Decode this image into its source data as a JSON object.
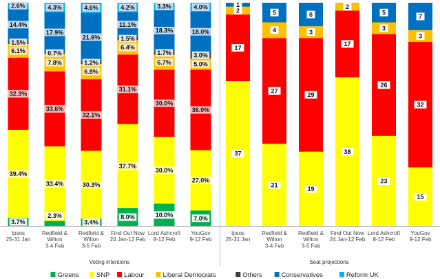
{
  "chart_data": [
    {
      "type": "bar",
      "stacked": true,
      "normalized": true,
      "title": "Voting intentions",
      "categories": [
        [
          "Ipsos",
          "25-31 Jan"
        ],
        [
          "Redfield &",
          "Wilton",
          "3-4 Feb"
        ],
        [
          "Redfield &",
          "Wilton",
          "3-5 Feb"
        ],
        [
          "Find Out Now",
          "24 Jan-12 Feb"
        ],
        [
          "Lord Ashcroft",
          "8-12 Feb"
        ],
        [
          "YouGov",
          "9-12 Feb"
        ]
      ],
      "ylim": [
        0,
        100
      ],
      "series": [
        {
          "name": "Greens",
          "values": [
            3.7,
            2.3,
            3.4,
            8.0,
            10.0,
            7.0
          ],
          "labels": [
            "3.7%",
            "2.3%",
            "3.4%",
            "8.0%",
            "10.0%",
            "7.0%"
          ]
        },
        {
          "name": "SNP",
          "values": [
            39.4,
            33.4,
            30.3,
            37.7,
            30.0,
            27.0
          ],
          "labels": [
            "39.4%",
            "33.4%",
            "30.3%",
            "37.7%",
            "30.0%",
            "27.0%"
          ]
        },
        {
          "name": "Labour",
          "values": [
            32.3,
            33.6,
            32.1,
            31.1,
            30.0,
            36.0
          ],
          "labels": [
            "32.3%",
            "33.6%",
            "32.1%",
            "31.1%",
            "30.0%",
            "36.0%"
          ]
        },
        {
          "name": "Liberal Democrats",
          "values": [
            6.1,
            7.8,
            6.8,
            6.4,
            6.7,
            5.0
          ],
          "labels": [
            "6.1%",
            "7.8%",
            "6.8%",
            "6.4%",
            "6.7%",
            "5.0%"
          ]
        },
        {
          "name": "Others",
          "values": [
            1.5,
            0.7,
            1.2,
            1.5,
            1.7,
            3.0
          ],
          "labels": [
            "1.5%",
            "0.7%",
            "1.2%",
            "1.5%",
            "1.7%",
            "3.0%"
          ]
        },
        {
          "name": "Conservatives",
          "values": [
            14.4,
            17.9,
            21.6,
            11.1,
            18.3,
            18.0
          ],
          "labels": [
            "14.4%",
            "17.9%",
            "21.6%",
            "11.1%",
            "18.3%",
            "18.0%"
          ]
        },
        {
          "name": "Reform UK",
          "values": [
            2.6,
            4.3,
            4.6,
            4.2,
            3.3,
            4.0
          ],
          "labels": [
            "2.6%",
            "4.3%",
            "4.6%",
            "4.2%",
            "3.3%",
            "4.0%"
          ]
        }
      ]
    },
    {
      "type": "bar",
      "stacked": true,
      "title": "Seat projections",
      "categories": [
        [
          "Ipsos",
          "25-31 Jan"
        ],
        [
          "Redfield &",
          "Wilton",
          "3-4 Feb"
        ],
        [
          "Redfield &",
          "Wilton",
          "3-5 Feb"
        ],
        [
          "Find Out Now",
          "24 Jan-12 Feb"
        ],
        [
          "Lord Ashcroft",
          "8-12 Feb"
        ],
        [
          "YouGov",
          "9-12 Feb"
        ]
      ],
      "ylim": [
        0,
        57
      ],
      "series": [
        {
          "name": "Greens",
          "values": [
            0,
            0,
            0,
            0,
            0,
            0
          ],
          "labels": [
            "",
            "",
            "",
            "",
            "",
            ""
          ]
        },
        {
          "name": "SNP",
          "values": [
            37,
            21,
            19,
            38,
            23,
            15
          ],
          "labels": [
            "37",
            "21",
            "19",
            "38",
            "23",
            "15"
          ]
        },
        {
          "name": "Labour",
          "values": [
            17,
            27,
            29,
            17,
            26,
            32
          ],
          "labels": [
            "17",
            "27",
            "29",
            "17",
            "26",
            "32"
          ]
        },
        {
          "name": "Liberal Democrats",
          "values": [
            2,
            4,
            3,
            2,
            3,
            3
          ],
          "labels": [
            "2",
            "4",
            "3",
            "2",
            "3",
            "3"
          ]
        },
        {
          "name": "Others",
          "values": [
            0,
            0,
            0,
            0,
            0,
            0
          ],
          "labels": [
            "",
            "",
            "",
            "",
            "",
            ""
          ]
        },
        {
          "name": "Conservatives",
          "values": [
            1,
            5,
            6,
            0,
            5,
            7
          ],
          "labels": [
            "1",
            "5",
            "6",
            "",
            "5",
            "7"
          ]
        },
        {
          "name": "Reform UK",
          "values": [
            0,
            0,
            0,
            0,
            0,
            0
          ],
          "labels": [
            "",
            "",
            "",
            "",
            "",
            ""
          ]
        }
      ]
    }
  ],
  "legend": {
    "position": "bottom",
    "items": [
      {
        "name": "Greens",
        "color": "#00b050"
      },
      {
        "name": "SNP",
        "color": "#ffff00"
      },
      {
        "name": "Labour",
        "color": "#ff0000"
      },
      {
        "name": "Liberal Democrats",
        "color": "#ffc000"
      },
      {
        "name": "Others",
        "color": "#404040"
      },
      {
        "name": "Conservatives",
        "color": "#0070c0"
      },
      {
        "name": "Reform UK",
        "color": "#00b0f0"
      }
    ]
  }
}
